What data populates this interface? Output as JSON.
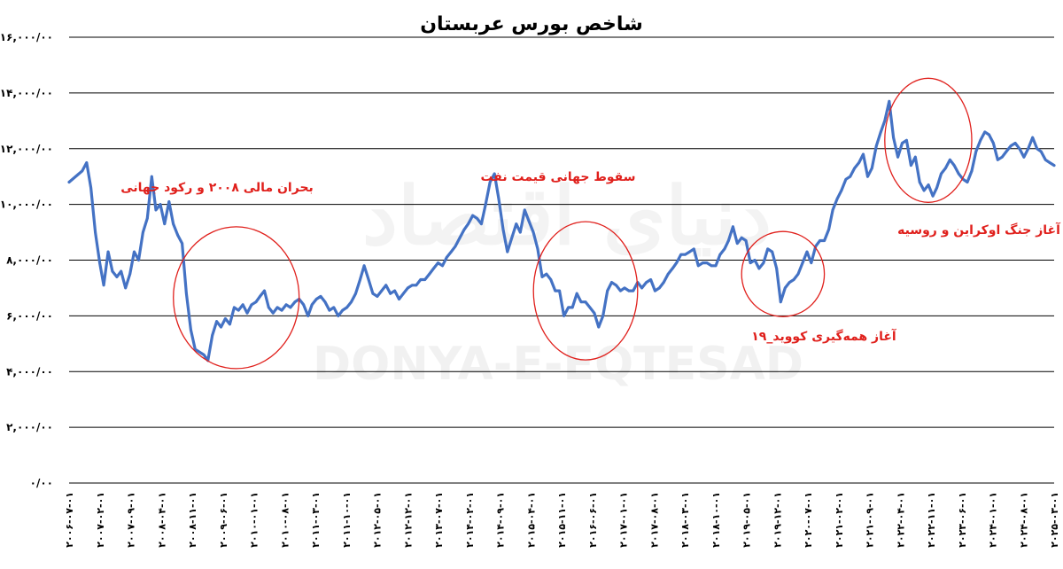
{
  "chart_data": {
    "type": "line",
    "title": "شاخص بورس عربستان",
    "xlabel": "",
    "ylabel": "",
    "ylim": [
      0,
      16000
    ],
    "y_ticks": [
      0,
      2000,
      4000,
      6000,
      8000,
      10000,
      12000,
      14000,
      16000
    ],
    "y_tick_labels": [
      "۰/۰۰",
      "۲,۰۰۰/۰۰",
      "۴,۰۰۰/۰۰",
      "۶,۰۰۰/۰۰",
      "۸,۰۰۰/۰۰",
      "۱۰,۰۰۰/۰۰",
      "۱۲,۰۰۰/۰۰",
      "۱۴,۰۰۰/۰۰",
      "۱۶,۰۰۰/۰۰"
    ],
    "grid": true,
    "legend": "none",
    "x_tick_labels": [
      "۲۰۰۶-۰۷-۰۱",
      "۲۰۰۷-۰۲-۰۱",
      "۲۰۰۷-۰۹-۰۱",
      "۲۰۰۸-۰۴-۰۱",
      "۲۰۰۸-۱۱-۰۱",
      "۲۰۰۹-۰۶-۰۱",
      "۲۰۱۰-۰۱-۰۱",
      "۲۰۱۰-۰۸-۰۱",
      "۲۰۱۱-۰۳-۰۱",
      "۲۰۱۱-۱۰-۰۱",
      "۲۰۱۲-۰۵-۰۱",
      "۲۰۱۲-۱۲-۰۱",
      "۲۰۱۳-۰۷-۰۱",
      "۲۰۱۴-۰۲-۰۱",
      "۲۰۱۴-۰۹-۰۱",
      "۲۰۱۵-۰۴-۰۱",
      "۲۰۱۵-۱۱-۰۱",
      "۲۰۱۶-۰۶-۰۱",
      "۲۰۱۷-۰۱-۰۱",
      "۲۰۱۷-۰۸-۰۱",
      "۲۰۱۸-۰۳-۰۱",
      "۲۰۱۸-۱۰-۰۱",
      "۲۰۱۹-۰۵-۰۱",
      "۲۰۱۹-۱۲-۰۱",
      "۲۰۲۰-۰۷-۰۱",
      "۲۰۲۱-۰۲-۰۱",
      "۲۰۲۱-۰۹-۰۱",
      "۲۰۲۲-۰۴-۰۱",
      "۲۰۲۲-۱۱-۰۱",
      "۲۰۲۳-۰۶-۰۱",
      "۲۰۲۴-۰۱-۰۱",
      "۲۰۲۴-۰۸-۰۱",
      "۲۰۲۵-۰۳-۰۱"
    ],
    "x_start": "2006-07-01",
    "x_end": "2025-06-01",
    "series": [
      {
        "color": "#4472c4",
        "points": [
          [
            "2006-07-01",
            10800
          ],
          [
            "2006-10-01",
            11200
          ],
          [
            "2006-11-01",
            11500
          ],
          [
            "2006-12-01",
            10600
          ],
          [
            "2007-01-01",
            9000
          ],
          [
            "2007-02-01",
            7900
          ],
          [
            "2007-03-01",
            7100
          ],
          [
            "2007-04-01",
            8300
          ],
          [
            "2007-05-01",
            7600
          ],
          [
            "2007-06-01",
            7400
          ],
          [
            "2007-07-01",
            7600
          ],
          [
            "2007-08-01",
            7000
          ],
          [
            "2007-09-01",
            7500
          ],
          [
            "2007-10-01",
            8300
          ],
          [
            "2007-11-01",
            8000
          ],
          [
            "2007-12-01",
            9000
          ],
          [
            "2008-01-01",
            9500
          ],
          [
            "2008-02-01",
            11000
          ],
          [
            "2008-03-01",
            9800
          ],
          [
            "2008-04-01",
            10000
          ],
          [
            "2008-05-01",
            9300
          ],
          [
            "2008-06-01",
            10100
          ],
          [
            "2008-07-01",
            9300
          ],
          [
            "2008-08-01",
            8900
          ],
          [
            "2008-09-01",
            8600
          ],
          [
            "2008-10-01",
            6800
          ],
          [
            "2008-11-01",
            5500
          ],
          [
            "2008-12-01",
            4800
          ],
          [
            "2009-01-01",
            4700
          ],
          [
            "2009-02-01",
            4600
          ],
          [
            "2009-03-01",
            4400
          ],
          [
            "2009-04-01",
            5300
          ],
          [
            "2009-05-01",
            5800
          ],
          [
            "2009-06-01",
            5600
          ],
          [
            "2009-07-01",
            5900
          ],
          [
            "2009-08-01",
            5700
          ],
          [
            "2009-09-01",
            6300
          ],
          [
            "2009-10-01",
            6200
          ],
          [
            "2009-11-01",
            6400
          ],
          [
            "2009-12-01",
            6100
          ],
          [
            "2010-01-01",
            6400
          ],
          [
            "2010-02-01",
            6500
          ],
          [
            "2010-03-01",
            6700
          ],
          [
            "2010-04-01",
            6900
          ],
          [
            "2010-05-01",
            6300
          ],
          [
            "2010-06-01",
            6100
          ],
          [
            "2010-07-01",
            6300
          ],
          [
            "2010-08-01",
            6200
          ],
          [
            "2010-09-01",
            6400
          ],
          [
            "2010-10-01",
            6300
          ],
          [
            "2010-11-01",
            6500
          ],
          [
            "2010-12-01",
            6600
          ],
          [
            "2011-01-01",
            6400
          ],
          [
            "2011-02-01",
            6000
          ],
          [
            "2011-03-01",
            6400
          ],
          [
            "2011-04-01",
            6600
          ],
          [
            "2011-05-01",
            6700
          ],
          [
            "2011-06-01",
            6500
          ],
          [
            "2011-07-01",
            6200
          ],
          [
            "2011-08-01",
            6300
          ],
          [
            "2011-09-01",
            6000
          ],
          [
            "2011-10-01",
            6200
          ],
          [
            "2011-11-01",
            6300
          ],
          [
            "2011-12-01",
            6500
          ],
          [
            "2012-01-01",
            6800
          ],
          [
            "2012-02-01",
            7300
          ],
          [
            "2012-03-01",
            7800
          ],
          [
            "2012-04-01",
            7300
          ],
          [
            "2012-05-01",
            6800
          ],
          [
            "2012-06-01",
            6700
          ],
          [
            "2012-07-01",
            6900
          ],
          [
            "2012-08-01",
            7100
          ],
          [
            "2012-09-01",
            6800
          ],
          [
            "2012-10-01",
            6900
          ],
          [
            "2012-11-01",
            6600
          ],
          [
            "2012-12-01",
            6800
          ],
          [
            "2013-01-01",
            7000
          ],
          [
            "2013-02-01",
            7100
          ],
          [
            "2013-03-01",
            7100
          ],
          [
            "2013-04-01",
            7300
          ],
          [
            "2013-05-01",
            7300
          ],
          [
            "2013-06-01",
            7500
          ],
          [
            "2013-07-01",
            7700
          ],
          [
            "2013-08-01",
            7900
          ],
          [
            "2013-09-01",
            7800
          ],
          [
            "2013-10-01",
            8100
          ],
          [
            "2013-11-01",
            8300
          ],
          [
            "2013-12-01",
            8500
          ],
          [
            "2014-01-01",
            8800
          ],
          [
            "2014-02-01",
            9100
          ],
          [
            "2014-03-01",
            9300
          ],
          [
            "2014-04-01",
            9600
          ],
          [
            "2014-05-01",
            9500
          ],
          [
            "2014-06-01",
            9300
          ],
          [
            "2014-07-01",
            10000
          ],
          [
            "2014-08-01",
            10800
          ],
          [
            "2014-09-01",
            11100
          ],
          [
            "2014-10-01",
            10200
          ],
          [
            "2014-11-01",
            9100
          ],
          [
            "2014-12-01",
            8300
          ],
          [
            "2015-01-01",
            8800
          ],
          [
            "2015-02-01",
            9300
          ],
          [
            "2015-03-01",
            9000
          ],
          [
            "2015-04-01",
            9800
          ],
          [
            "2015-05-01",
            9400
          ],
          [
            "2015-06-01",
            9000
          ],
          [
            "2015-07-01",
            8400
          ],
          [
            "2015-08-01",
            7400
          ],
          [
            "2015-09-01",
            7500
          ],
          [
            "2015-10-01",
            7300
          ],
          [
            "2015-11-01",
            6900
          ],
          [
            "2015-12-01",
            6900
          ],
          [
            "2016-01-01",
            6000
          ],
          [
            "2016-02-01",
            6300
          ],
          [
            "2016-03-01",
            6300
          ],
          [
            "2016-04-01",
            6800
          ],
          [
            "2016-05-01",
            6500
          ],
          [
            "2016-06-01",
            6500
          ],
          [
            "2016-07-01",
            6300
          ],
          [
            "2016-08-01",
            6100
          ],
          [
            "2016-09-01",
            5600
          ],
          [
            "2016-10-01",
            6000
          ],
          [
            "2016-11-01",
            6900
          ],
          [
            "2016-12-01",
            7200
          ],
          [
            "2017-01-01",
            7100
          ],
          [
            "2017-02-01",
            6900
          ],
          [
            "2017-03-01",
            7000
          ],
          [
            "2017-04-01",
            6900
          ],
          [
            "2017-05-01",
            6900
          ],
          [
            "2017-06-01",
            7200
          ],
          [
            "2017-07-01",
            7000
          ],
          [
            "2017-08-01",
            7200
          ],
          [
            "2017-09-01",
            7300
          ],
          [
            "2017-10-01",
            6900
          ],
          [
            "2017-11-01",
            7000
          ],
          [
            "2017-12-01",
            7200
          ],
          [
            "2018-01-01",
            7500
          ],
          [
            "2018-02-01",
            7700
          ],
          [
            "2018-03-01",
            7900
          ],
          [
            "2018-04-01",
            8200
          ],
          [
            "2018-05-01",
            8200
          ],
          [
            "2018-06-01",
            8300
          ],
          [
            "2018-07-01",
            8400
          ],
          [
            "2018-08-01",
            7800
          ],
          [
            "2018-09-01",
            7900
          ],
          [
            "2018-10-01",
            7900
          ],
          [
            "2018-11-01",
            7800
          ],
          [
            "2018-12-01",
            7800
          ],
          [
            "2019-01-01",
            8200
          ],
          [
            "2019-02-01",
            8400
          ],
          [
            "2019-03-01",
            8700
          ],
          [
            "2019-04-01",
            9200
          ],
          [
            "2019-05-01",
            8600
          ],
          [
            "2019-06-01",
            8800
          ],
          [
            "2019-07-01",
            8700
          ],
          [
            "2019-08-01",
            7900
          ],
          [
            "2019-09-01",
            8000
          ],
          [
            "2019-10-01",
            7700
          ],
          [
            "2019-11-01",
            7900
          ],
          [
            "2019-12-01",
            8400
          ],
          [
            "2020-01-01",
            8300
          ],
          [
            "2020-02-01",
            7700
          ],
          [
            "2020-03-01",
            6500
          ],
          [
            "2020-04-01",
            7000
          ],
          [
            "2020-05-01",
            7200
          ],
          [
            "2020-06-01",
            7300
          ],
          [
            "2020-07-01",
            7500
          ],
          [
            "2020-08-01",
            7900
          ],
          [
            "2020-09-01",
            8300
          ],
          [
            "2020-10-01",
            7900
          ],
          [
            "2020-11-01",
            8500
          ],
          [
            "2020-12-01",
            8700
          ],
          [
            "2021-01-01",
            8700
          ],
          [
            "2021-02-01",
            9100
          ],
          [
            "2021-03-01",
            9800
          ],
          [
            "2021-04-01",
            10200
          ],
          [
            "2021-05-01",
            10500
          ],
          [
            "2021-06-01",
            10900
          ],
          [
            "2021-07-01",
            11000
          ],
          [
            "2021-08-01",
            11300
          ],
          [
            "2021-09-01",
            11500
          ],
          [
            "2021-10-01",
            11800
          ],
          [
            "2021-11-01",
            11000
          ],
          [
            "2021-12-01",
            11300
          ],
          [
            "2022-01-01",
            12100
          ],
          [
            "2022-02-01",
            12600
          ],
          [
            "2022-03-01",
            13000
          ],
          [
            "2022-04-01",
            13700
          ],
          [
            "2022-05-01",
            12400
          ],
          [
            "2022-06-01",
            11700
          ],
          [
            "2022-07-01",
            12200
          ],
          [
            "2022-08-01",
            12300
          ],
          [
            "2022-09-01",
            11400
          ],
          [
            "2022-10-01",
            11700
          ],
          [
            "2022-11-01",
            10800
          ],
          [
            "2022-12-01",
            10500
          ],
          [
            "2023-01-01",
            10700
          ],
          [
            "2023-02-01",
            10300
          ],
          [
            "2023-03-01",
            10600
          ],
          [
            "2023-04-01",
            11100
          ],
          [
            "2023-05-01",
            11300
          ],
          [
            "2023-06-01",
            11600
          ],
          [
            "2023-07-01",
            11400
          ],
          [
            "2023-08-01",
            11100
          ],
          [
            "2023-09-01",
            10900
          ],
          [
            "2023-10-01",
            10800
          ],
          [
            "2023-11-01",
            11200
          ],
          [
            "2023-12-01",
            11900
          ],
          [
            "2024-01-01",
            12300
          ],
          [
            "2024-02-01",
            12600
          ],
          [
            "2024-03-01",
            12500
          ],
          [
            "2024-04-01",
            12200
          ],
          [
            "2024-05-01",
            11600
          ],
          [
            "2024-06-01",
            11700
          ],
          [
            "2024-07-01",
            11900
          ],
          [
            "2024-08-01",
            12100
          ],
          [
            "2024-09-01",
            12200
          ],
          [
            "2024-10-01",
            12000
          ],
          [
            "2024-11-01",
            11700
          ],
          [
            "2024-12-01",
            12000
          ],
          [
            "2025-01-01",
            12400
          ],
          [
            "2025-02-01",
            12000
          ],
          [
            "2025-03-01",
            11900
          ],
          [
            "2025-04-01",
            11600
          ],
          [
            "2025-05-01",
            11500
          ],
          [
            "2025-06-01",
            11400
          ]
        ]
      }
    ],
    "annotations": [
      {
        "text": "بحران مالی ۲۰۰۸ و رکود جهانی",
        "from": "2008-07-01",
        "to": "2010-12-01",
        "center_value": 6650
      },
      {
        "text": "سقوط جهانی قیمت نفت",
        "from": "2015-06-01",
        "to": "2017-06-01",
        "center_value": 6900
      },
      {
        "text": "آغاز همه‌گیری کووید_۱۹",
        "from": "2019-06-01",
        "to": "2021-01-01",
        "center_value": 7500
      },
      {
        "text": "آغاز جنگ اوکراین و روسیه",
        "from": "2022-03-01",
        "to": "2023-11-01",
        "center_value": 12300
      }
    ]
  },
  "watermark": {
    "latin": "DONYA-E-EQTESAD",
    "persian": "دنیای اقتصاد"
  }
}
